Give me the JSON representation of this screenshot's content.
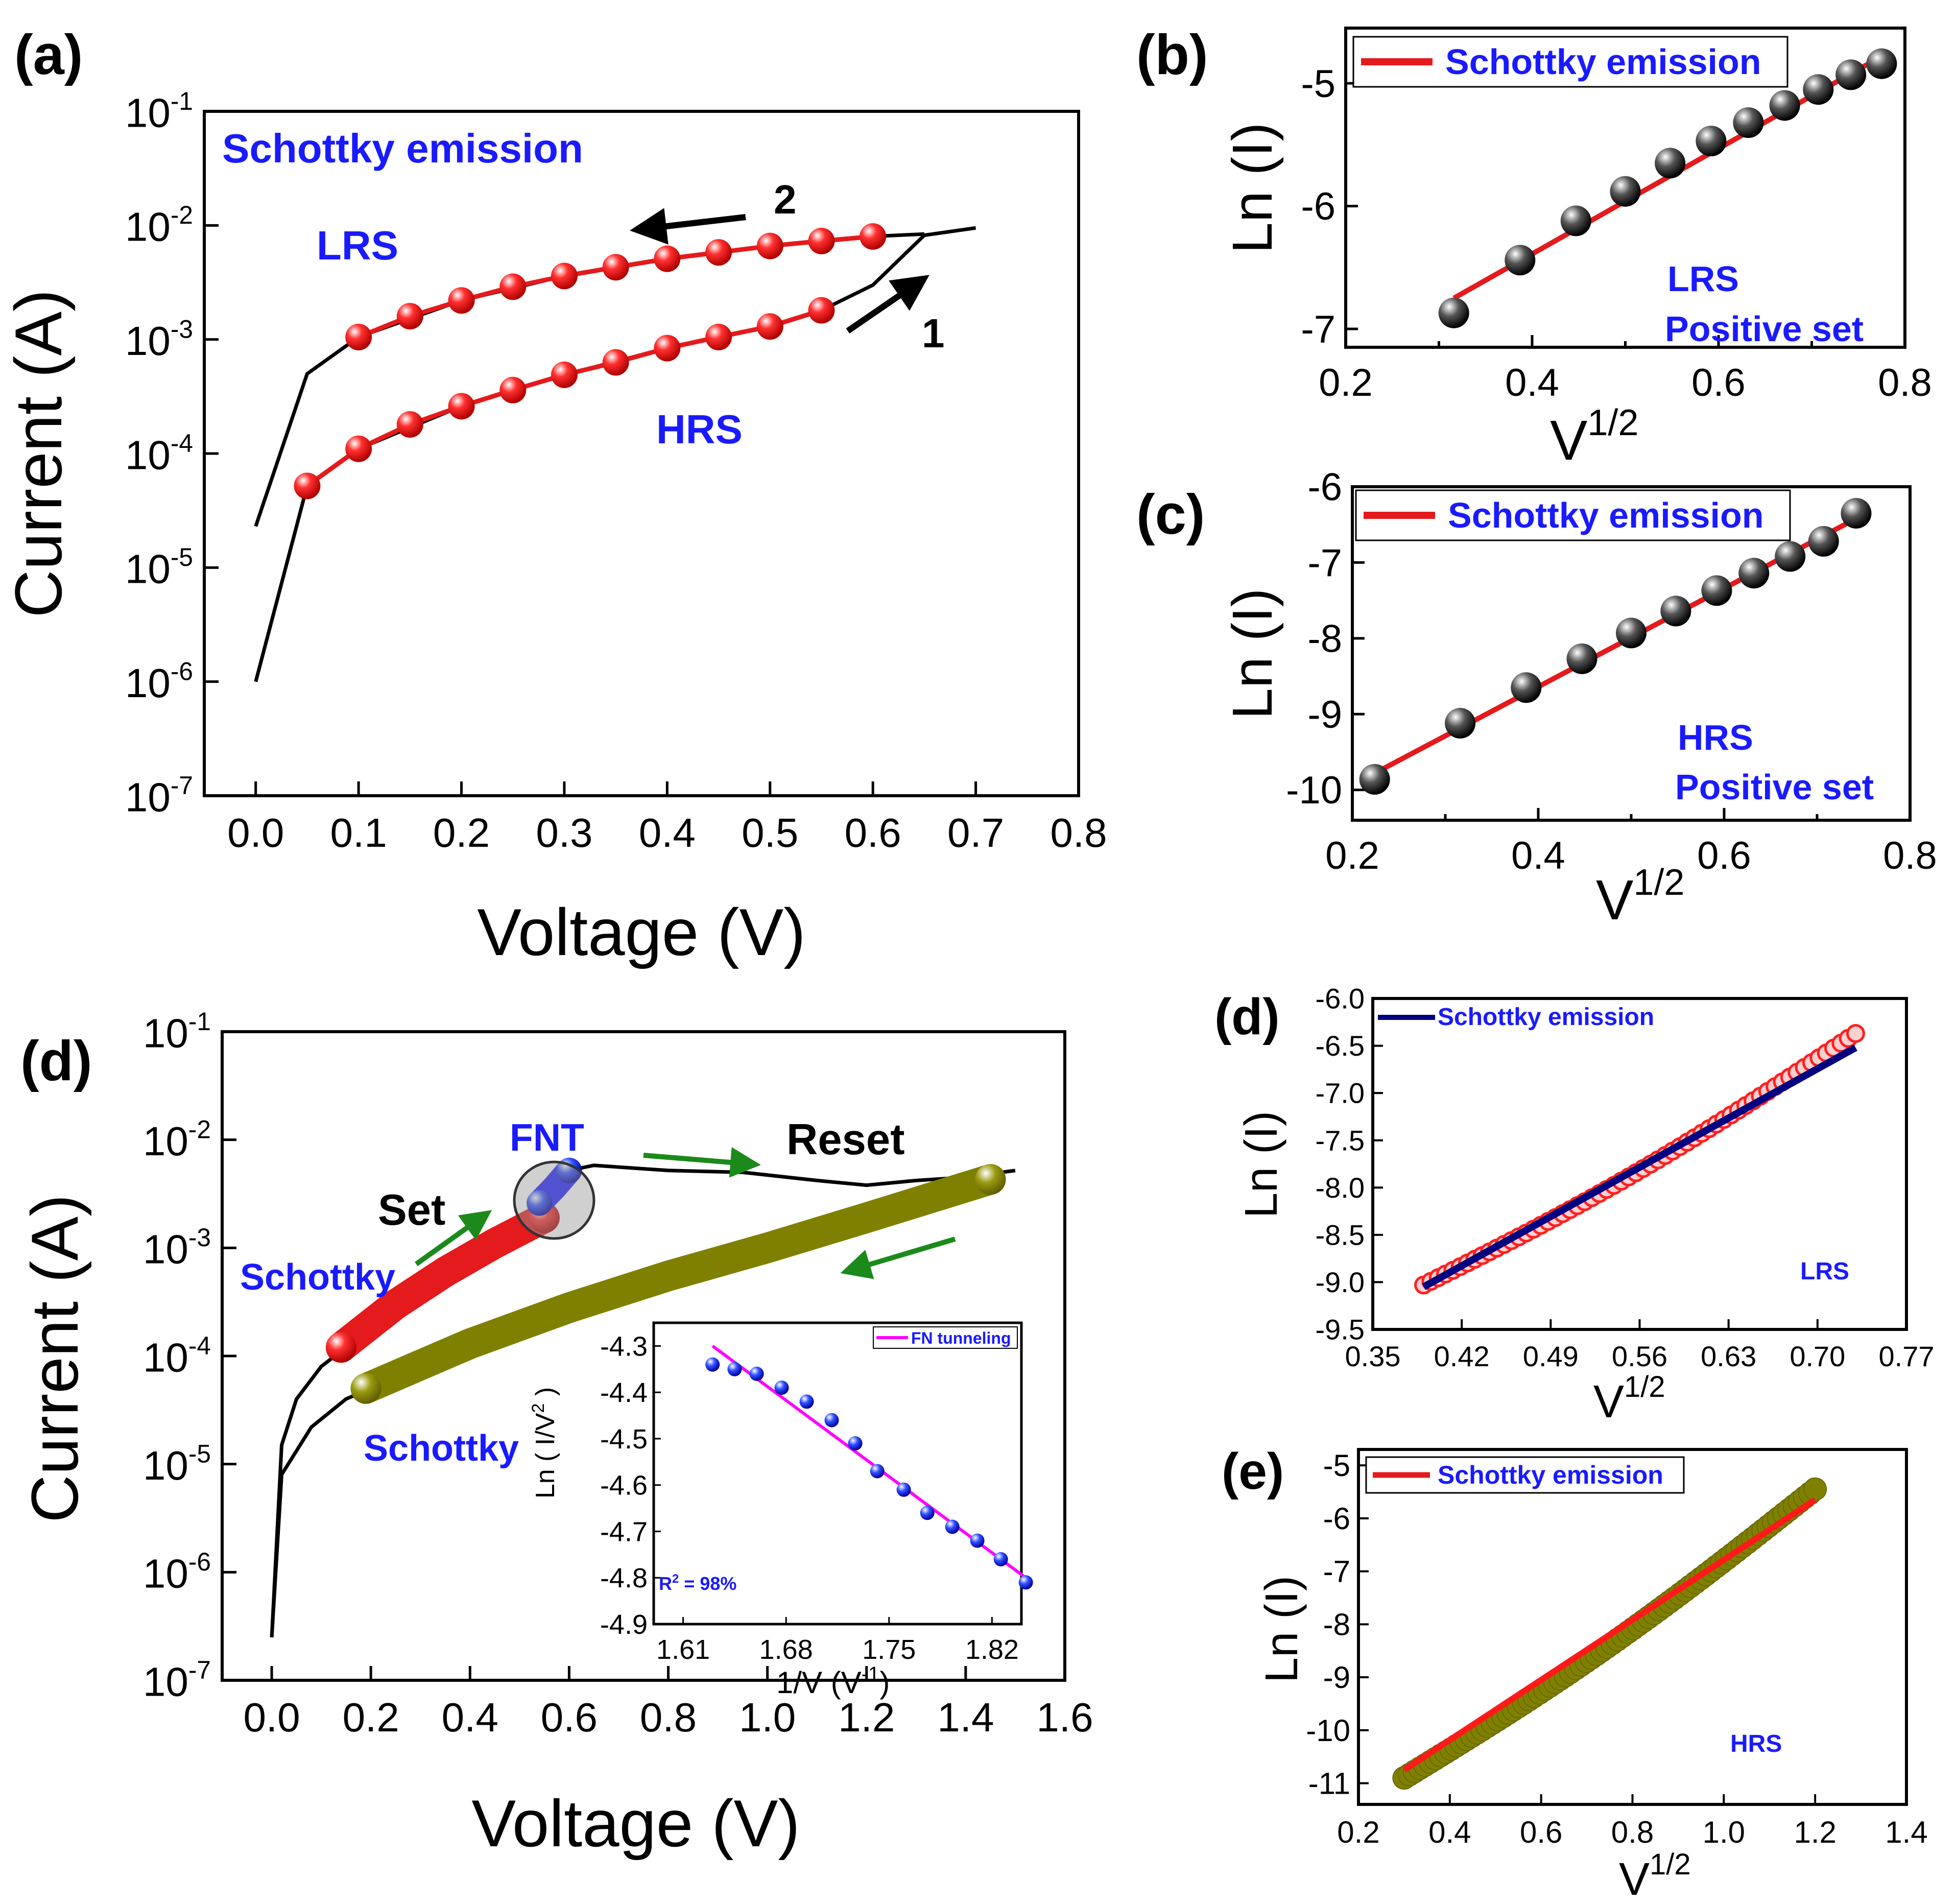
{
  "chart_data": [
    {
      "id": "a",
      "type": "line",
      "panel_label": "(a)",
      "xlabel": "Voltage (V)",
      "ylabel": "Current (A)",
      "xlim": [
        -0.05,
        0.8
      ],
      "yscale": "log",
      "ylim_exp": [
        -7,
        -1
      ],
      "xticks": [
        0.0,
        0.1,
        0.2,
        0.3,
        0.4,
        0.5,
        0.6,
        0.7,
        0.8
      ],
      "xtick_labels": [
        "0.0",
        "0.1",
        "0.2",
        "0.3",
        "0.4",
        "0.5",
        "0.6",
        "0.7",
        "0.8"
      ],
      "ytick_labels": [
        {
          "exp": -1,
          "base": "10",
          "sup": "-1"
        },
        {
          "exp": -2,
          "base": "10",
          "sup": "-2"
        },
        {
          "exp": -3,
          "base": "10",
          "sup": "-3"
        },
        {
          "exp": -4,
          "base": "10",
          "sup": "-4"
        },
        {
          "exp": -5,
          "base": "10",
          "sup": "-5"
        },
        {
          "exp": -6,
          "base": "10",
          "sup": "-6"
        },
        {
          "exp": -7,
          "base": "10",
          "sup": "-7"
        }
      ],
      "series": [
        {
          "name": "HRS sweep (1)",
          "style": "line",
          "color": "#000000",
          "x": [
            0.0,
            0.05,
            0.1,
            0.2,
            0.3,
            0.4,
            0.5,
            0.55,
            0.6,
            0.65,
            0.7
          ],
          "y": [
            1e-06,
            5.2e-05,
            0.00011,
            0.00026,
            0.00049,
            0.00084,
            0.0013,
            0.0018,
            0.003,
            0.0082,
            0.0095
          ]
        },
        {
          "name": "LRS sweep (2)",
          "style": "line",
          "color": "#000000",
          "x": [
            0.65,
            0.6,
            0.5,
            0.4,
            0.3,
            0.2,
            0.1,
            0.05,
            0.0
          ],
          "y": [
            0.0084,
            0.008,
            0.0066,
            0.0051,
            0.0036,
            0.0022,
            0.00105,
            0.0005,
            2.3e-05
          ]
        },
        {
          "name": "HRS Schottky fit",
          "style": "markers",
          "color": "#e41a1c",
          "x": [
            0.05,
            0.1,
            0.15,
            0.2,
            0.25,
            0.3,
            0.35,
            0.4,
            0.45,
            0.5,
            0.55
          ],
          "y": [
            5.2e-05,
            0.00011,
            0.00018,
            0.00026,
            0.00036,
            0.00049,
            0.00063,
            0.00084,
            0.00105,
            0.0013,
            0.0018
          ]
        },
        {
          "name": "LRS Schottky fit",
          "style": "markers",
          "color": "#e41a1c",
          "x": [
            0.1,
            0.15,
            0.2,
            0.25,
            0.3,
            0.35,
            0.4,
            0.45,
            0.5,
            0.55,
            0.6
          ],
          "y": [
            0.00105,
            0.0016,
            0.0022,
            0.0029,
            0.0036,
            0.0043,
            0.0051,
            0.0058,
            0.0066,
            0.0073,
            0.008
          ]
        }
      ],
      "annotations": {
        "title": "Schottky emission",
        "lrs": "LRS",
        "hrs": "HRS",
        "arrow1_label": "1",
        "arrow2_label": "2"
      }
    },
    {
      "id": "b",
      "type": "scatter",
      "panel_label": "(b)",
      "xlabel_base": "V",
      "xlabel_sup": "1/2",
      "ylabel": "Ln (I)",
      "xlim": [
        0.2,
        0.8
      ],
      "ylim": [
        -7.15,
        -4.55
      ],
      "xticks": [
        0.2,
        0.4,
        0.6,
        0.8
      ],
      "xtick_labels": [
        "0.2",
        "0.4",
        "0.6",
        "0.8"
      ],
      "yticks": [
        -5,
        -6,
        -7
      ],
      "ytick_labels": [
        "-5",
        "-6",
        "-7"
      ],
      "x": [
        0.316,
        0.387,
        0.447,
        0.5,
        0.548,
        0.592,
        0.632,
        0.671,
        0.707,
        0.742,
        0.775
      ],
      "y": [
        -6.87,
        -6.44,
        -6.12,
        -5.88,
        -5.65,
        -5.47,
        -5.32,
        -5.18,
        -5.05,
        -4.93,
        -4.84
      ],
      "fit": {
        "x": [
          0.316,
          0.775
        ],
        "y": [
          -6.75,
          -4.78
        ]
      },
      "legend": "Schottky emission",
      "annotations": {
        "line1": "LRS",
        "line2": "Positive set"
      }
    },
    {
      "id": "c",
      "type": "scatter",
      "panel_label": "(c)",
      "xlabel_base": "V",
      "xlabel_sup": "1/2",
      "ylabel": "Ln (I)",
      "xlim": [
        0.2,
        0.8
      ],
      "ylim": [
        -10.4,
        -6.0
      ],
      "xticks": [
        0.2,
        0.4,
        0.6,
        0.8
      ],
      "xtick_labels": [
        "0.2",
        "0.4",
        "0.6",
        "0.8"
      ],
      "yticks": [
        -6,
        -7,
        -8,
        -9,
        -10
      ],
      "ytick_labels": [
        "-6",
        "-7",
        "-8",
        "-9",
        "-10"
      ],
      "x": [
        0.224,
        0.316,
        0.387,
        0.447,
        0.5,
        0.548,
        0.592,
        0.632,
        0.671,
        0.707,
        0.742
      ],
      "y": [
        -9.86,
        -9.12,
        -8.65,
        -8.27,
        -7.93,
        -7.64,
        -7.37,
        -7.14,
        -6.92,
        -6.72,
        -6.35
      ],
      "fit": {
        "x": [
          0.224,
          0.742
        ],
        "y": [
          -9.78,
          -6.42
        ]
      },
      "legend": "Schottky emission",
      "annotations": {
        "line1": "HRS",
        "line2": "Positive set"
      }
    },
    {
      "id": "d_main",
      "type": "line",
      "panel_label": "(d)",
      "xlabel": "Voltage (V)",
      "ylabel": "Current (A)",
      "xlim": [
        -0.1,
        1.6
      ],
      "yscale": "log",
      "ylim_exp": [
        -7,
        -1
      ],
      "xticks": [
        0.0,
        0.2,
        0.4,
        0.6,
        0.8,
        1.0,
        1.2,
        1.4,
        1.6
      ],
      "xtick_labels": [
        "0.0",
        "0.2",
        "0.4",
        "0.6",
        "0.8",
        "1.0",
        "1.2",
        "1.4",
        "1.6"
      ],
      "ytick_labels": [
        {
          "exp": -1,
          "base": "10",
          "sup": "-1"
        },
        {
          "exp": -2,
          "base": "10",
          "sup": "-2"
        },
        {
          "exp": -3,
          "base": "10",
          "sup": "-3"
        },
        {
          "exp": -4,
          "base": "10",
          "sup": "-4"
        },
        {
          "exp": -5,
          "base": "10",
          "sup": "-5"
        },
        {
          "exp": -6,
          "base": "10",
          "sup": "-6"
        },
        {
          "exp": -7,
          "base": "10",
          "sup": "-7"
        }
      ],
      "series": [
        {
          "name": "Set sweep",
          "style": "line",
          "color": "#000000",
          "x": [
            0.0,
            0.02,
            0.05,
            0.1,
            0.15,
            0.3,
            0.5,
            0.55,
            0.6,
            0.65,
            0.8,
            0.95,
            1.1,
            1.2,
            1.3,
            1.4,
            1.5
          ],
          "y": [
            2.5e-07,
            1.5e-05,
            4e-05,
            8e-05,
            0.00012,
            0.00035,
            0.0016,
            0.003,
            0.0052,
            0.0058,
            0.0052,
            0.005,
            0.0042,
            0.0038,
            0.0042,
            0.0045,
            0.0052
          ]
        },
        {
          "name": "Reset sweep",
          "style": "line",
          "color": "#000000",
          "x": [
            0.0,
            0.02,
            0.08,
            0.15,
            0.2
          ],
          "y": [
            2.5e-07,
            8e-06,
            2.2e-05,
            4e-05,
            5e-05
          ]
        },
        {
          "name": "Schottky (LRS)",
          "style": "thick",
          "color": "#e41a1c",
          "x": [
            0.14,
            0.25,
            0.35,
            0.45,
            0.55
          ],
          "y": [
            0.00012,
            0.0003,
            0.0006,
            0.0011,
            0.0019
          ]
        },
        {
          "name": "Schottky (HRS)",
          "style": "thick",
          "color": "#808000",
          "x": [
            0.19,
            0.4,
            0.6,
            0.8,
            1.0,
            1.2,
            1.45
          ],
          "y": [
            5e-05,
            0.00013,
            0.00028,
            0.00055,
            0.001,
            0.0019,
            0.0043
          ]
        },
        {
          "name": "FNT",
          "style": "thick",
          "color": "#1a1aff",
          "x": [
            0.54,
            0.57,
            0.6
          ],
          "y": [
            0.0026,
            0.0036,
            0.0052
          ]
        }
      ],
      "annotations": {
        "fnt": "FNT",
        "reset": "Reset",
        "set": "Set",
        "schottky_upper": "Schottky",
        "schottky_lower": "Schottky"
      }
    },
    {
      "id": "d_inset",
      "type": "scatter",
      "xlabel_main": "1/V (V",
      "xlabel_sup": "-1",
      "xlabel_close": ")",
      "ylabel_main": "Ln ( I/V",
      "ylabel_sup": "2",
      "ylabel_close": " )",
      "xlim": [
        1.59,
        1.84
      ],
      "ylim": [
        -4.9,
        -4.25
      ],
      "xticks": [
        1.61,
        1.68,
        1.75,
        1.82
      ],
      "xtick_labels": [
        "1.61",
        "1.68",
        "1.75",
        "1.82"
      ],
      "yticks": [
        -4.3,
        -4.4,
        -4.5,
        -4.6,
        -4.7,
        -4.8,
        -4.9
      ],
      "ytick_labels": [
        "-4.3",
        "-4.4",
        "-4.5",
        "-4.6",
        "-4.7",
        "-4.8",
        "-4.9"
      ],
      "x": [
        1.63,
        1.645,
        1.66,
        1.677,
        1.694,
        1.711,
        1.727,
        1.742,
        1.76,
        1.776,
        1.793,
        1.81,
        1.826,
        1.843
      ],
      "y": [
        -4.34,
        -4.35,
        -4.36,
        -4.39,
        -4.42,
        -4.46,
        -4.51,
        -4.57,
        -4.61,
        -4.66,
        -4.69,
        -4.72,
        -4.76,
        -4.81
      ],
      "fit": {
        "x": [
          1.63,
          1.843
        ],
        "y": [
          -4.3,
          -4.8
        ]
      },
      "legend": "FN tunneling",
      "r2_base": "R",
      "r2_sup": "2",
      "r2_rest": " = 98%"
    },
    {
      "id": "d_right",
      "type": "scatter",
      "panel_label": "(d)",
      "xlabel_base": "V",
      "xlabel_sup": "1/2",
      "ylabel": "Ln (I)",
      "xlim": [
        0.35,
        0.77
      ],
      "ylim": [
        -9.5,
        -6.0
      ],
      "xticks": [
        0.35,
        0.42,
        0.49,
        0.56,
        0.63,
        0.7,
        0.77
      ],
      "xtick_labels": [
        "0.35",
        "0.42",
        "0.49",
        "0.56",
        "0.63",
        "0.70",
        "0.77"
      ],
      "yticks": [
        -6.0,
        -6.5,
        -7.0,
        -7.5,
        -8.0,
        -8.5,
        -9.0,
        -9.5
      ],
      "ytick_labels": [
        "-6.0",
        "-6.5",
        "-7.0",
        "-7.5",
        "-8.0",
        "-8.5",
        "-9.0",
        "-9.5"
      ],
      "curve": {
        "x0": 0.39,
        "x1": 0.73,
        "y0": -9.03,
        "y1": -6.37,
        "bow": 0.12,
        "n": 60
      },
      "fit": {
        "x": [
          0.39,
          0.73
        ],
        "y": [
          -9.05,
          -6.52
        ]
      },
      "legend": "Schottky emission",
      "annotations": {
        "state": "LRS"
      }
    },
    {
      "id": "e",
      "type": "scatter",
      "panel_label": "(e)",
      "xlabel_base": "V",
      "xlabel_sup": "1/2",
      "ylabel": "Ln (I)",
      "xlim": [
        0.2,
        1.4
      ],
      "ylim": [
        -11.4,
        -4.7
      ],
      "xticks": [
        0.2,
        0.4,
        0.6,
        0.8,
        1.0,
        1.2,
        1.4
      ],
      "xtick_labels": [
        "0.2",
        "0.4",
        "0.6",
        "0.8",
        "1.0",
        "1.2",
        "1.4"
      ],
      "yticks": [
        -5,
        -6,
        -7,
        -8,
        -9,
        -10,
        -11
      ],
      "ytick_labels": [
        "-5",
        "-6",
        "-7",
        "-8",
        "-9",
        "-10",
        "-11"
      ],
      "curve": {
        "x0": 0.3,
        "x1": 1.2,
        "y0": -10.9,
        "y1": -5.45,
        "bow": 0.22,
        "n": 80
      },
      "fit": {
        "x": [
          0.3,
          1.2
        ],
        "y": [
          -10.75,
          -5.65
        ]
      },
      "legend": "Schottky emission",
      "annotations": {
        "state": "HRS"
      }
    }
  ]
}
